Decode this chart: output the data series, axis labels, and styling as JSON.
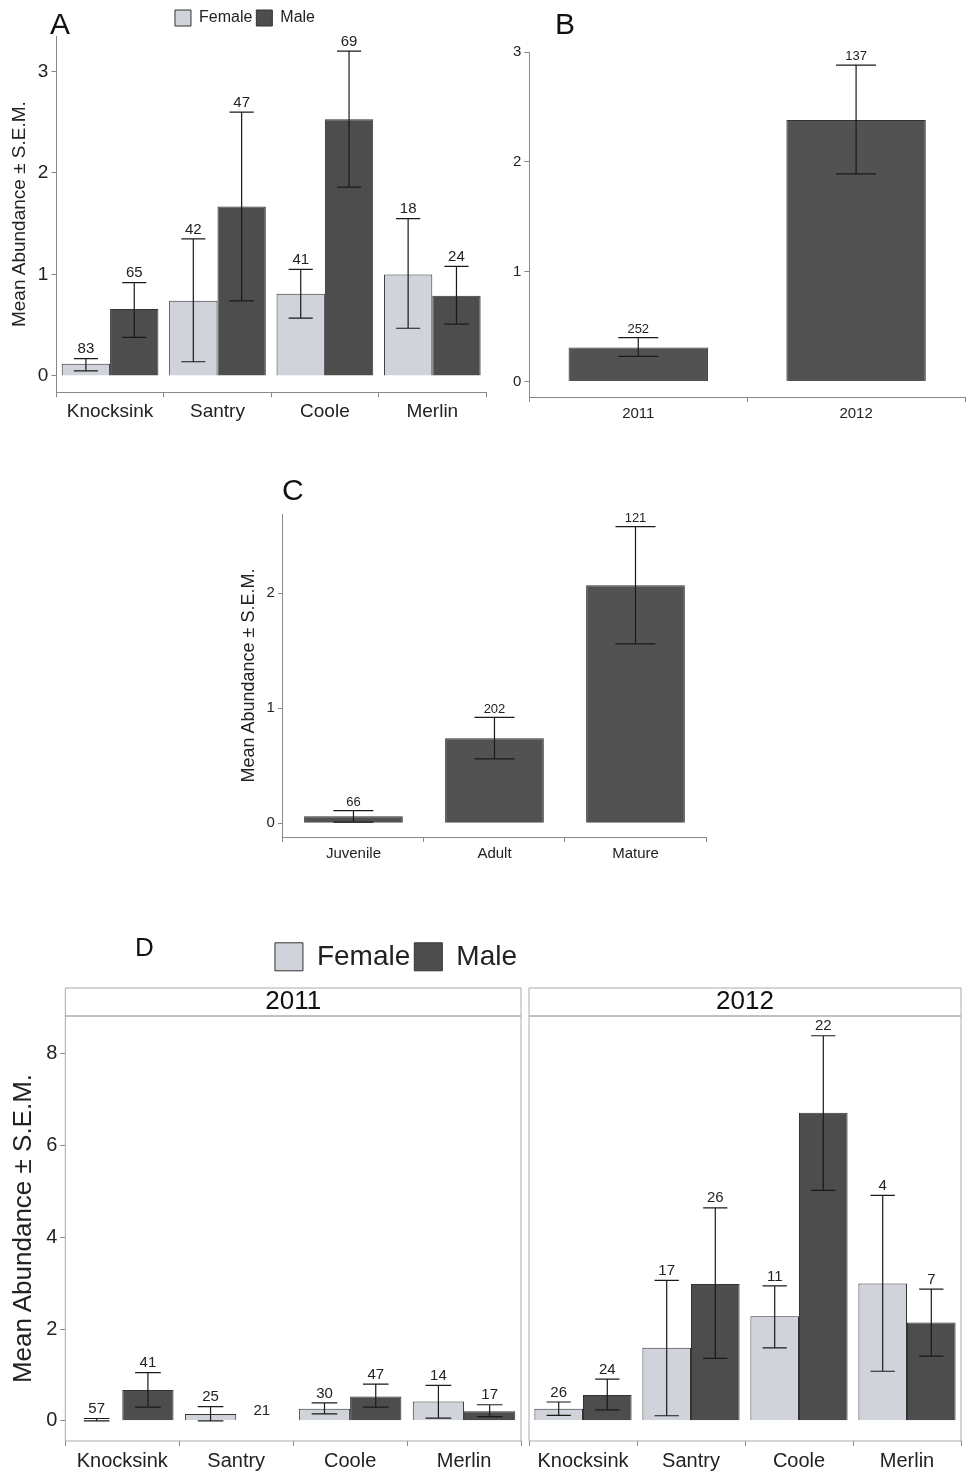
{
  "chart_data": [
    {
      "type": "bar",
      "title": "A",
      "ylabel": "Mean Abundance ± S.E.M.",
      "categories": [
        "Knocksink",
        "Santry",
        "Coole",
        "Merlin"
      ],
      "ylim": [
        -0.16,
        3.35
      ],
      "yticks": [
        0,
        1,
        2,
        3
      ],
      "grid": false,
      "legend": "top",
      "series": [
        {
          "name": "Female",
          "color": "#d0d3da",
          "values": [
            0.12,
            0.74,
            0.81,
            1.0
          ],
          "errors": [
            [
              0.05,
              0.17
            ],
            [
              0.14,
              1.35
            ],
            [
              0.57,
              1.05
            ],
            [
              0.47,
              1.55
            ]
          ]
        },
        {
          "name": "Male",
          "color": "#4d4d4d",
          "values": [
            0.66,
            1.67,
            2.53,
            0.79
          ],
          "errors": [
            [
              0.38,
              0.92
            ],
            [
              0.74,
              2.6
            ],
            [
              1.86,
              3.2
            ],
            [
              0.51,
              1.08
            ]
          ]
        }
      ],
      "annotations": [
        "83",
        "42",
        "41",
        "18",
        "65",
        "47",
        "69",
        "24"
      ]
    },
    {
      "type": "bar",
      "title": "B",
      "categories": [
        "2011",
        "2012"
      ],
      "ylim": [
        -0.14,
        3.0
      ],
      "yticks": [
        0,
        1,
        2,
        3
      ],
      "grid": false,
      "series": [
        {
          "color": "#525252",
          "values": [
            0.31,
            2.38
          ],
          "errors": [
            [
              0.23,
              0.4
            ],
            [
              1.89,
              2.88
            ]
          ]
        }
      ],
      "annotations": [
        "252",
        "137"
      ]
    },
    {
      "type": "bar",
      "title": "C",
      "ylabel": "Mean Abundance ± S.E.M.",
      "categories": [
        "Juvenile",
        "Adult",
        "Mature"
      ],
      "ylim": [
        -0.12,
        2.69
      ],
      "yticks": [
        0,
        1,
        2
      ],
      "grid": false,
      "series": [
        {
          "color": "#525252",
          "values": [
            0.06,
            0.74,
            2.07
          ],
          "errors": [
            [
              0.01,
              0.11
            ],
            [
              0.56,
              0.92
            ],
            [
              1.56,
              2.58
            ]
          ]
        }
      ],
      "annotations": [
        "66",
        "202",
        "121"
      ]
    },
    {
      "type": "bar",
      "title": "D",
      "subtitle": "2011",
      "ylabel": "Mean Abundance ± S.E.M.",
      "categories": [
        "Knocksink",
        "Santry",
        "Coole",
        "Merlin"
      ],
      "ylim": [
        -0.44,
        8.82
      ],
      "yticks": [
        0,
        2,
        4,
        6,
        8
      ],
      "grid": false,
      "legend": "top right",
      "series": [
        {
          "name": "Female",
          "color": "#d0d3da",
          "values": [
            0.02,
            0.15,
            0.26,
            0.42
          ],
          "errors": [
            [
              0,
              0.05
            ],
            [
              0,
              0.31
            ],
            [
              0.15,
              0.39
            ],
            [
              0.06,
              0.77
            ]
          ]
        },
        {
          "name": "Male",
          "color": "#4d4d4d",
          "values": [
            0.67,
            0,
            0.53,
            0.21
          ],
          "errors": [
            [
              0.3,
              1.05
            ],
            null,
            [
              0.3,
              0.8
            ],
            [
              0.09,
              0.35
            ]
          ]
        }
      ],
      "annotations": [
        "57",
        "25",
        "30",
        "14",
        "41",
        "21",
        "47",
        "17"
      ]
    },
    {
      "type": "bar",
      "subtitle": "2012",
      "categories": [
        "Knocksink",
        "Santry",
        "Coole",
        "Merlin"
      ],
      "ylim": [
        -0.44,
        8.82
      ],
      "yticks": [
        0,
        2,
        4,
        6,
        8
      ],
      "grid": false,
      "tick_labels": "x",
      "series": [
        {
          "color": "#d0d3da",
          "values": [
            0.26,
            1.59,
            2.28,
            2.99
          ],
          "errors": [
            [
              0.12,
              0.41
            ],
            [
              0.11,
              3.06
            ],
            [
              1.59,
              2.94
            ],
            [
              1.08,
              4.91
            ]
          ]
        },
        {
          "color": "#4d4d4d",
          "values": [
            0.56,
            2.98,
            6.71,
            2.14
          ],
          "errors": [
            [
              0.24,
              0.91
            ],
            [
              1.36,
              4.64
            ],
            [
              5.02,
              8.39
            ],
            [
              1.41,
              2.87
            ]
          ]
        }
      ],
      "annotations": [
        "26",
        "17",
        "11",
        "4",
        "24",
        "26",
        "22",
        "7"
      ]
    }
  ]
}
